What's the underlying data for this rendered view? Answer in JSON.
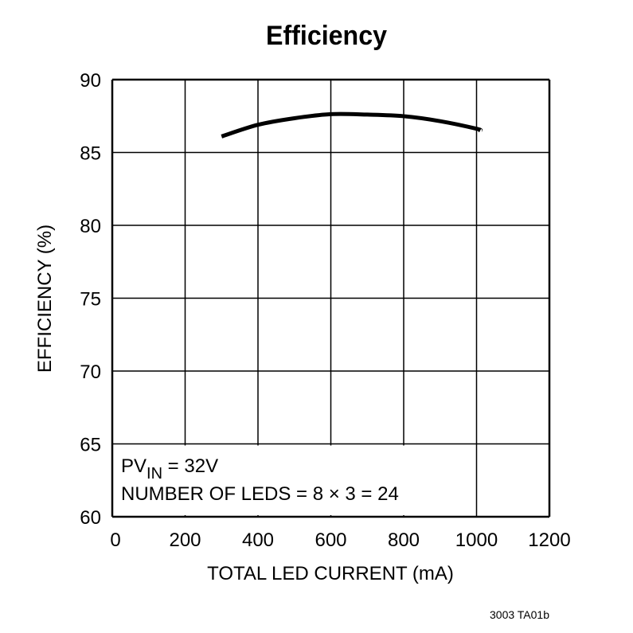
{
  "chart_data": {
    "type": "line",
    "title": "Efficiency",
    "xlabel": "TOTAL LED CURRENT (mA)",
    "ylabel": "EFFICIENCY (%)",
    "xlim": [
      0,
      1200
    ],
    "ylim": [
      60,
      90
    ],
    "xticks": [
      "0",
      "200",
      "400",
      "600",
      "800",
      "1000",
      "1200"
    ],
    "yticks": [
      "60",
      "65",
      "70",
      "75",
      "80",
      "85",
      "90"
    ],
    "grid": true,
    "annotations": {
      "line1_main": "PV",
      "line1_sub": "IN",
      "line1_rest": " = 32V",
      "line2": "NUMBER OF LEDS = 8 × 3 = 24"
    },
    "footnote": "3003 TA01b",
    "series": [
      {
        "color": "#000000",
        "x": [
          300,
          400,
          500,
          600,
          700,
          800,
          900,
          1000,
          1010
        ],
        "y": [
          86.1,
          86.9,
          87.35,
          87.63,
          87.6,
          87.49,
          87.15,
          86.63,
          86.5
        ]
      }
    ]
  }
}
